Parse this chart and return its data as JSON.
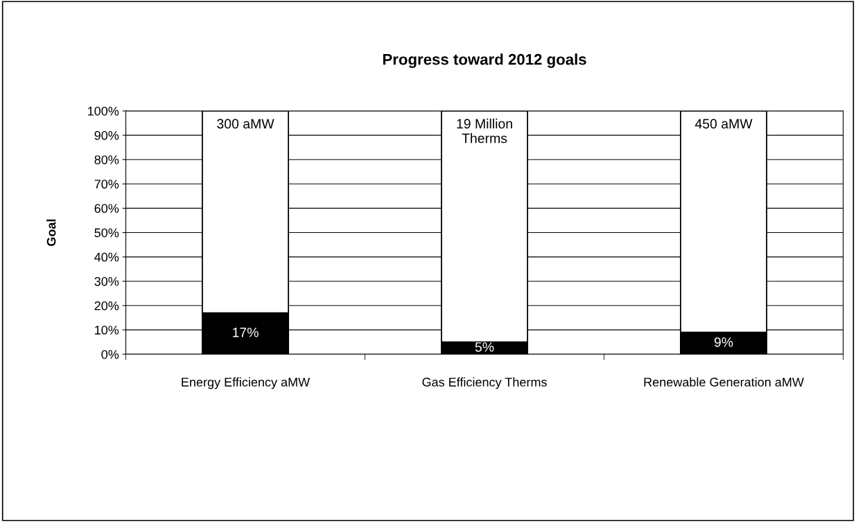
{
  "chart_data": {
    "type": "bar",
    "title": "Progress toward 2012 goals",
    "ylabel": "Goal",
    "categories": [
      "Energy Efficiency aMW",
      "Gas Efficiency Therms",
      "Renewable Generation aMW"
    ],
    "stacked": true,
    "series": [
      {
        "color": "#000000",
        "values": [
          17,
          5,
          9
        ],
        "value_labels": [
          "17%",
          "5%",
          "9%"
        ]
      },
      {
        "color": "#ffffff",
        "values": [
          83,
          95,
          91
        ]
      }
    ],
    "annotations": [
      {
        "text": "300 aMW",
        "x": "Energy Efficiency aMW",
        "y": 100
      },
      {
        "text": "19 Million\nTherms",
        "x": "Gas Efficiency Therms",
        "y": 100
      },
      {
        "text": "450 aMW",
        "x": "Renewable Generation aMW",
        "y": 100
      }
    ],
    "ylim": [
      0,
      100
    ],
    "yticks": [
      {
        "value": 0,
        "label": "0%"
      },
      {
        "value": 10,
        "label": "10%"
      },
      {
        "value": 20,
        "label": "20%"
      },
      {
        "value": 30,
        "label": "30%"
      },
      {
        "value": 40,
        "label": "40%"
      },
      {
        "value": 50,
        "label": "50%"
      },
      {
        "value": 60,
        "label": "60%"
      },
      {
        "value": 70,
        "label": "70%"
      },
      {
        "value": 80,
        "label": "80%"
      },
      {
        "value": 90,
        "label": "90%"
      },
      {
        "value": 100,
        "label": "100%"
      }
    ],
    "grid": "y",
    "legend": false
  }
}
